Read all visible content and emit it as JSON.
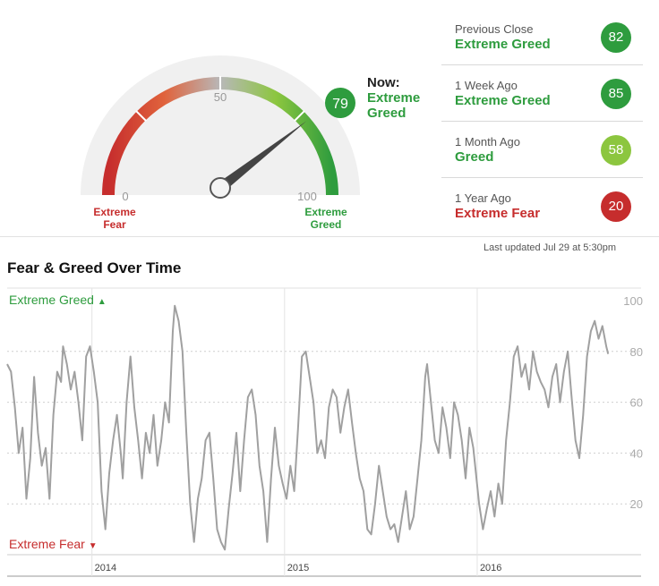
{
  "gauge": {
    "now_label": "Now:",
    "now_rating": "Extreme Greed",
    "now_value": "79",
    "now_color": "#2e9c3e",
    "tick_min": "0",
    "tick_mid": "50",
    "tick_max": "100",
    "left_label_line1": "Extreme",
    "left_label_line2": "Fear",
    "right_label_line1": "Extreme",
    "right_label_line2": "Greed"
  },
  "history": [
    {
      "label": "Previous Close",
      "rating": "Extreme Greed",
      "value": "82",
      "color": "#2e9c3e",
      "text_color": "#2e9c3e"
    },
    {
      "label": "1 Week Ago",
      "rating": "Extreme Greed",
      "value": "85",
      "color": "#2e9c3e",
      "text_color": "#2e9c3e"
    },
    {
      "label": "1 Month Ago",
      "rating": "Greed",
      "value": "58",
      "color": "#8cc63f",
      "text_color": "#2e9c3e"
    },
    {
      "label": "1 Year Ago",
      "rating": "Extreme Fear",
      "value": "20",
      "color": "#c62d2d",
      "text_color": "#c62d2d"
    }
  ],
  "last_updated": "Last updated Jul 29 at 5:30pm",
  "chart_data": {
    "type": "line",
    "title": "Fear & Greed Over Time",
    "top_label": "Extreme Greed",
    "bottom_label": "Extreme Fear",
    "ylim": [
      0,
      100
    ],
    "yticks": [
      "20",
      "40",
      "60",
      "80",
      "100"
    ],
    "xticks": [
      {
        "label": "2014",
        "x": 2014.0
      },
      {
        "label": "2015",
        "x": 2015.0
      },
      {
        "label": "2016",
        "x": 2016.0
      }
    ],
    "xlim": [
      2013.56,
      2016.73
    ],
    "grid": true,
    "series": [
      {
        "color": "#a0a0a0",
        "points": [
          [
            2013.56,
            75
          ],
          [
            2013.58,
            72
          ],
          [
            2013.6,
            58
          ],
          [
            2013.62,
            40
          ],
          [
            2013.64,
            50
          ],
          [
            2013.66,
            22
          ],
          [
            2013.68,
            38
          ],
          [
            2013.7,
            70
          ],
          [
            2013.72,
            48
          ],
          [
            2013.74,
            35
          ],
          [
            2013.76,
            42
          ],
          [
            2013.78,
            22
          ],
          [
            2013.8,
            55
          ],
          [
            2013.82,
            72
          ],
          [
            2013.84,
            68
          ],
          [
            2013.85,
            82
          ],
          [
            2013.87,
            75
          ],
          [
            2013.89,
            65
          ],
          [
            2013.91,
            72
          ],
          [
            2013.93,
            60
          ],
          [
            2013.95,
            45
          ],
          [
            2013.97,
            78
          ],
          [
            2013.99,
            82
          ],
          [
            2014.01,
            72
          ],
          [
            2014.03,
            60
          ],
          [
            2014.05,
            25
          ],
          [
            2014.07,
            10
          ],
          [
            2014.09,
            32
          ],
          [
            2014.11,
            45
          ],
          [
            2014.13,
            55
          ],
          [
            2014.15,
            40
          ],
          [
            2014.16,
            30
          ],
          [
            2014.18,
            60
          ],
          [
            2014.2,
            78
          ],
          [
            2014.22,
            58
          ],
          [
            2014.24,
            45
          ],
          [
            2014.26,
            30
          ],
          [
            2014.28,
            48
          ],
          [
            2014.3,
            40
          ],
          [
            2014.32,
            55
          ],
          [
            2014.34,
            35
          ],
          [
            2014.36,
            45
          ],
          [
            2014.38,
            60
          ],
          [
            2014.4,
            52
          ],
          [
            2014.42,
            88
          ],
          [
            2014.43,
            98
          ],
          [
            2014.45,
            92
          ],
          [
            2014.47,
            80
          ],
          [
            2014.49,
            48
          ],
          [
            2014.51,
            20
          ],
          [
            2014.53,
            5
          ],
          [
            2014.55,
            22
          ],
          [
            2014.57,
            30
          ],
          [
            2014.59,
            45
          ],
          [
            2014.61,
            48
          ],
          [
            2014.63,
            30
          ],
          [
            2014.65,
            10
          ],
          [
            2014.67,
            5
          ],
          [
            2014.69,
            2
          ],
          [
            2014.71,
            18
          ],
          [
            2014.73,
            32
          ],
          [
            2014.75,
            48
          ],
          [
            2014.77,
            25
          ],
          [
            2014.79,
            45
          ],
          [
            2014.81,
            62
          ],
          [
            2014.83,
            65
          ],
          [
            2014.85,
            55
          ],
          [
            2014.87,
            35
          ],
          [
            2014.89,
            25
          ],
          [
            2014.91,
            5
          ],
          [
            2014.93,
            30
          ],
          [
            2014.95,
            50
          ],
          [
            2014.97,
            35
          ],
          [
            2014.99,
            28
          ],
          [
            2015.01,
            22
          ],
          [
            2015.03,
            35
          ],
          [
            2015.05,
            25
          ],
          [
            2015.07,
            50
          ],
          [
            2015.09,
            78
          ],
          [
            2015.11,
            80
          ],
          [
            2015.13,
            70
          ],
          [
            2015.15,
            60
          ],
          [
            2015.17,
            40
          ],
          [
            2015.19,
            45
          ],
          [
            2015.21,
            38
          ],
          [
            2015.23,
            58
          ],
          [
            2015.25,
            65
          ],
          [
            2015.27,
            62
          ],
          [
            2015.29,
            48
          ],
          [
            2015.31,
            58
          ],
          [
            2015.33,
            65
          ],
          [
            2015.35,
            52
          ],
          [
            2015.37,
            40
          ],
          [
            2015.39,
            30
          ],
          [
            2015.41,
            25
          ],
          [
            2015.43,
            10
          ],
          [
            2015.45,
            8
          ],
          [
            2015.47,
            20
          ],
          [
            2015.49,
            35
          ],
          [
            2015.51,
            25
          ],
          [
            2015.53,
            15
          ],
          [
            2015.55,
            10
          ],
          [
            2015.57,
            12
          ],
          [
            2015.59,
            5
          ],
          [
            2015.61,
            15
          ],
          [
            2015.63,
            25
          ],
          [
            2015.65,
            10
          ],
          [
            2015.67,
            15
          ],
          [
            2015.69,
            30
          ],
          [
            2015.71,
            45
          ],
          [
            2015.73,
            70
          ],
          [
            2015.74,
            75
          ],
          [
            2015.76,
            60
          ],
          [
            2015.78,
            45
          ],
          [
            2015.8,
            40
          ],
          [
            2015.82,
            58
          ],
          [
            2015.84,
            50
          ],
          [
            2015.86,
            38
          ],
          [
            2015.88,
            60
          ],
          [
            2015.9,
            55
          ],
          [
            2015.92,
            45
          ],
          [
            2015.94,
            30
          ],
          [
            2015.96,
            50
          ],
          [
            2015.98,
            42
          ],
          [
            2016.01,
            20
          ],
          [
            2016.03,
            10
          ],
          [
            2016.05,
            18
          ],
          [
            2016.07,
            25
          ],
          [
            2016.09,
            15
          ],
          [
            2016.11,
            28
          ],
          [
            2016.13,
            20
          ],
          [
            2016.15,
            45
          ],
          [
            2016.17,
            60
          ],
          [
            2016.19,
            78
          ],
          [
            2016.21,
            82
          ],
          [
            2016.23,
            70
          ],
          [
            2016.25,
            75
          ],
          [
            2016.27,
            65
          ],
          [
            2016.29,
            80
          ],
          [
            2016.31,
            72
          ],
          [
            2016.33,
            68
          ],
          [
            2016.35,
            65
          ],
          [
            2016.37,
            58
          ],
          [
            2016.39,
            70
          ],
          [
            2016.41,
            75
          ],
          [
            2016.43,
            60
          ],
          [
            2016.45,
            72
          ],
          [
            2016.47,
            80
          ],
          [
            2016.49,
            62
          ],
          [
            2016.51,
            45
          ],
          [
            2016.53,
            38
          ],
          [
            2016.55,
            55
          ],
          [
            2016.57,
            78
          ],
          [
            2016.59,
            88
          ],
          [
            2016.61,
            92
          ],
          [
            2016.63,
            85
          ],
          [
            2016.65,
            90
          ],
          [
            2016.67,
            82
          ],
          [
            2016.68,
            79
          ]
        ]
      }
    ]
  }
}
